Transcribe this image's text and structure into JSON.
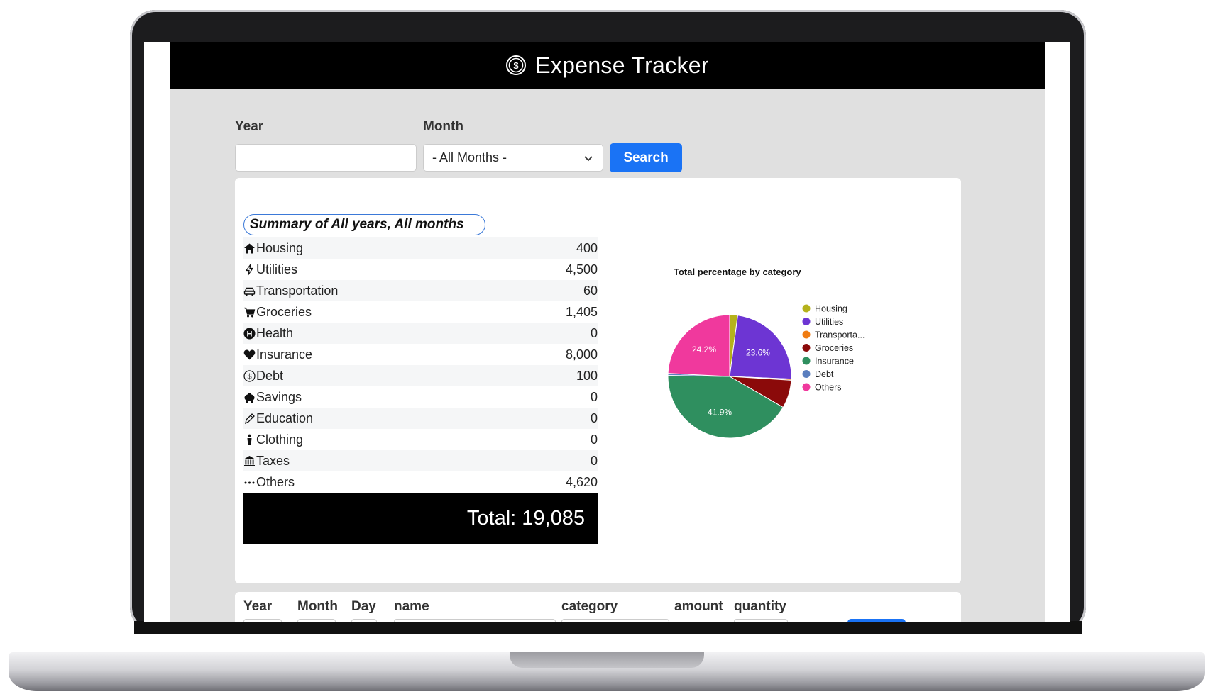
{
  "header": {
    "title": "Expense Tracker",
    "logo_icon": "dollar-circle-icon"
  },
  "filters": {
    "year_label": "Year",
    "year_value": "",
    "month_label": "Month",
    "month_selected": "- All Months -",
    "search_label": "Search"
  },
  "summary": {
    "title": "Summary of All years, All months",
    "rows": [
      {
        "icon": "house-icon",
        "label": "Housing",
        "value": "400"
      },
      {
        "icon": "lightning-icon",
        "label": "Utilities",
        "value": "4,500"
      },
      {
        "icon": "car-icon",
        "label": "Transportation",
        "value": "60"
      },
      {
        "icon": "cart-icon",
        "label": "Groceries",
        "value": "1,405"
      },
      {
        "icon": "hospital-icon",
        "label": "Health",
        "value": "0"
      },
      {
        "icon": "heart-icon",
        "label": "Insurance",
        "value": "8,000"
      },
      {
        "icon": "coin-icon",
        "label": "Debt",
        "value": "100"
      },
      {
        "icon": "piggy-bank-icon",
        "label": "Savings",
        "value": "0"
      },
      {
        "icon": "pen-icon",
        "label": "Education",
        "value": "0"
      },
      {
        "icon": "person-icon",
        "label": "Clothing",
        "value": "0"
      },
      {
        "icon": "bank-icon",
        "label": "Taxes",
        "value": "0"
      },
      {
        "icon": "ellipsis-icon",
        "label": "Others",
        "value": "4,620"
      }
    ],
    "total": "Total: 19,085"
  },
  "chart_data": {
    "type": "pie",
    "title": "Total percentage by category",
    "legend_position": "right",
    "categories": [
      "Housing",
      "Utilities",
      "Transporta...",
      "Groceries",
      "Insurance",
      "Debt",
      "Others"
    ],
    "values": [
      400,
      4500,
      60,
      1405,
      8000,
      100,
      4620
    ],
    "percent_labels": [
      "",
      "23.6%",
      "",
      "",
      "41.9%",
      "",
      "24.2%"
    ],
    "colors": [
      "#b5b21b",
      "#6d35d3",
      "#f07c12",
      "#8b0a0a",
      "#2f8f5f",
      "#5b7fbf",
      "#f0399d"
    ]
  },
  "entry_form": {
    "labels": [
      "Year",
      "Month",
      "Day",
      "name",
      "category",
      "amount",
      "quantity"
    ]
  }
}
